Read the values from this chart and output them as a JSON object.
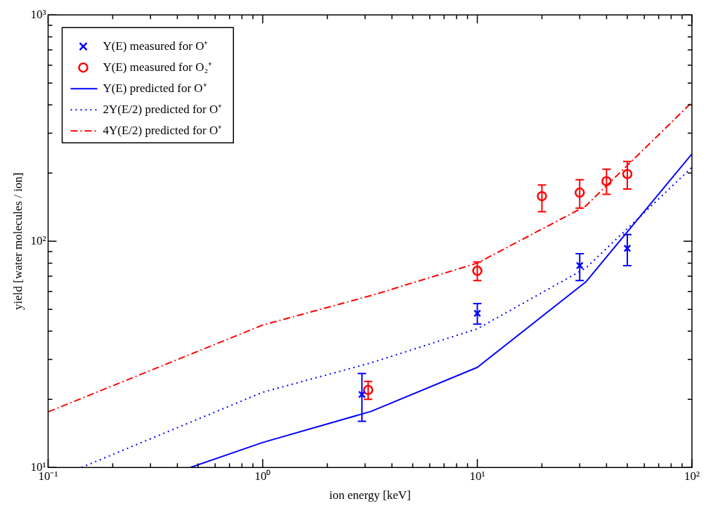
{
  "chart_data": {
    "type": "line",
    "xlabel": "ion energy [keV]",
    "ylabel": "yield [water molecules / ion]",
    "log": "xy",
    "grid": false,
    "legend": "top left",
    "xlim": [
      0.1,
      100
    ],
    "ylim": [
      10,
      1000
    ],
    "xticks": [
      {
        "value": 0.1,
        "label": "10⁻¹"
      },
      {
        "value": 0.2,
        "label": null
      },
      {
        "value": 0.3,
        "label": null
      },
      {
        "value": 0.4,
        "label": null
      },
      {
        "value": 0.5,
        "label": null
      },
      {
        "value": 0.6,
        "label": null
      },
      {
        "value": 0.7,
        "label": null
      },
      {
        "value": 0.8,
        "label": null
      },
      {
        "value": 0.9,
        "label": null
      },
      {
        "value": 1,
        "label": "10⁰"
      },
      {
        "value": 2,
        "label": null
      },
      {
        "value": 3,
        "label": null
      },
      {
        "value": 4,
        "label": null
      },
      {
        "value": 5,
        "label": null
      },
      {
        "value": 6,
        "label": null
      },
      {
        "value": 7,
        "label": null
      },
      {
        "value": 8,
        "label": null
      },
      {
        "value": 9,
        "label": null
      },
      {
        "value": 10,
        "label": "10¹"
      },
      {
        "value": 20,
        "label": null
      },
      {
        "value": 30,
        "label": null
      },
      {
        "value": 40,
        "label": null
      },
      {
        "value": 50,
        "label": null
      },
      {
        "value": 60,
        "label": null
      },
      {
        "value": 70,
        "label": null
      },
      {
        "value": 80,
        "label": null
      },
      {
        "value": 90,
        "label": null
      },
      {
        "value": 100,
        "label": "10²"
      }
    ],
    "yticks": [
      {
        "value": 10,
        "label": "10¹"
      },
      {
        "value": 20,
        "label": null
      },
      {
        "value": 30,
        "label": null
      },
      {
        "value": 40,
        "label": null
      },
      {
        "value": 50,
        "label": null
      },
      {
        "value": 60,
        "label": null
      },
      {
        "value": 70,
        "label": null
      },
      {
        "value": 80,
        "label": null
      },
      {
        "value": 90,
        "label": null
      },
      {
        "value": 100,
        "label": "10²"
      },
      {
        "value": 200,
        "label": null
      },
      {
        "value": 300,
        "label": null
      },
      {
        "value": 400,
        "label": null
      },
      {
        "value": 500,
        "label": null
      },
      {
        "value": 600,
        "label": null
      },
      {
        "value": 700,
        "label": null
      },
      {
        "value": 800,
        "label": null
      },
      {
        "value": 900,
        "label": null
      },
      {
        "value": 1000,
        "label": "10³"
      }
    ],
    "series": [
      {
        "name": "Y(E) measured for O⁺",
        "type": "scatter",
        "marker": "cross",
        "color": "#0000ff",
        "x": [
          2.9,
          10,
          30,
          50
        ],
        "values": [
          21,
          48,
          78,
          93
        ],
        "errors": [
          [
            16,
            26
          ],
          [
            43,
            53
          ],
          [
            67,
            88
          ],
          [
            78,
            107
          ]
        ]
      },
      {
        "name": "Y(E) measured for O₂⁺",
        "type": "scatter",
        "marker": "circle",
        "color": "#ff0000",
        "x": [
          3.1,
          10,
          20,
          30,
          40,
          50
        ],
        "values": [
          22,
          74,
          158,
          164,
          184,
          198
        ],
        "errors": [
          [
            20,
            24
          ],
          [
            67,
            81
          ],
          [
            135,
            177
          ],
          [
            140,
            187
          ],
          [
            161,
            208
          ],
          [
            170,
            225
          ]
        ]
      },
      {
        "name": "Y(E) predicted for O⁺",
        "type": "line",
        "line_style": "solid",
        "color": "#0000ff",
        "x": [
          0.46,
          1,
          3.2,
          10,
          32,
          100
        ],
        "values": [
          10,
          12.9,
          17.7,
          27.7,
          66,
          243
        ]
      },
      {
        "name": "2Y(E/2) predicted for O⁺",
        "type": "line",
        "line_style": "dotted",
        "color": "#0000ff",
        "x": [
          0.143,
          1,
          3.2,
          10,
          32,
          100
        ],
        "values": [
          10,
          21.5,
          29,
          41,
          76,
          212
        ]
      },
      {
        "name": "4Y(E/2) predicted for O⁺",
        "type": "line",
        "line_style": "dashdot",
        "color": "#ff0000",
        "x": [
          0.1,
          1,
          3.2,
          10,
          32,
          100
        ],
        "values": [
          17.6,
          42.6,
          57.5,
          80,
          143,
          411
        ]
      }
    ]
  }
}
